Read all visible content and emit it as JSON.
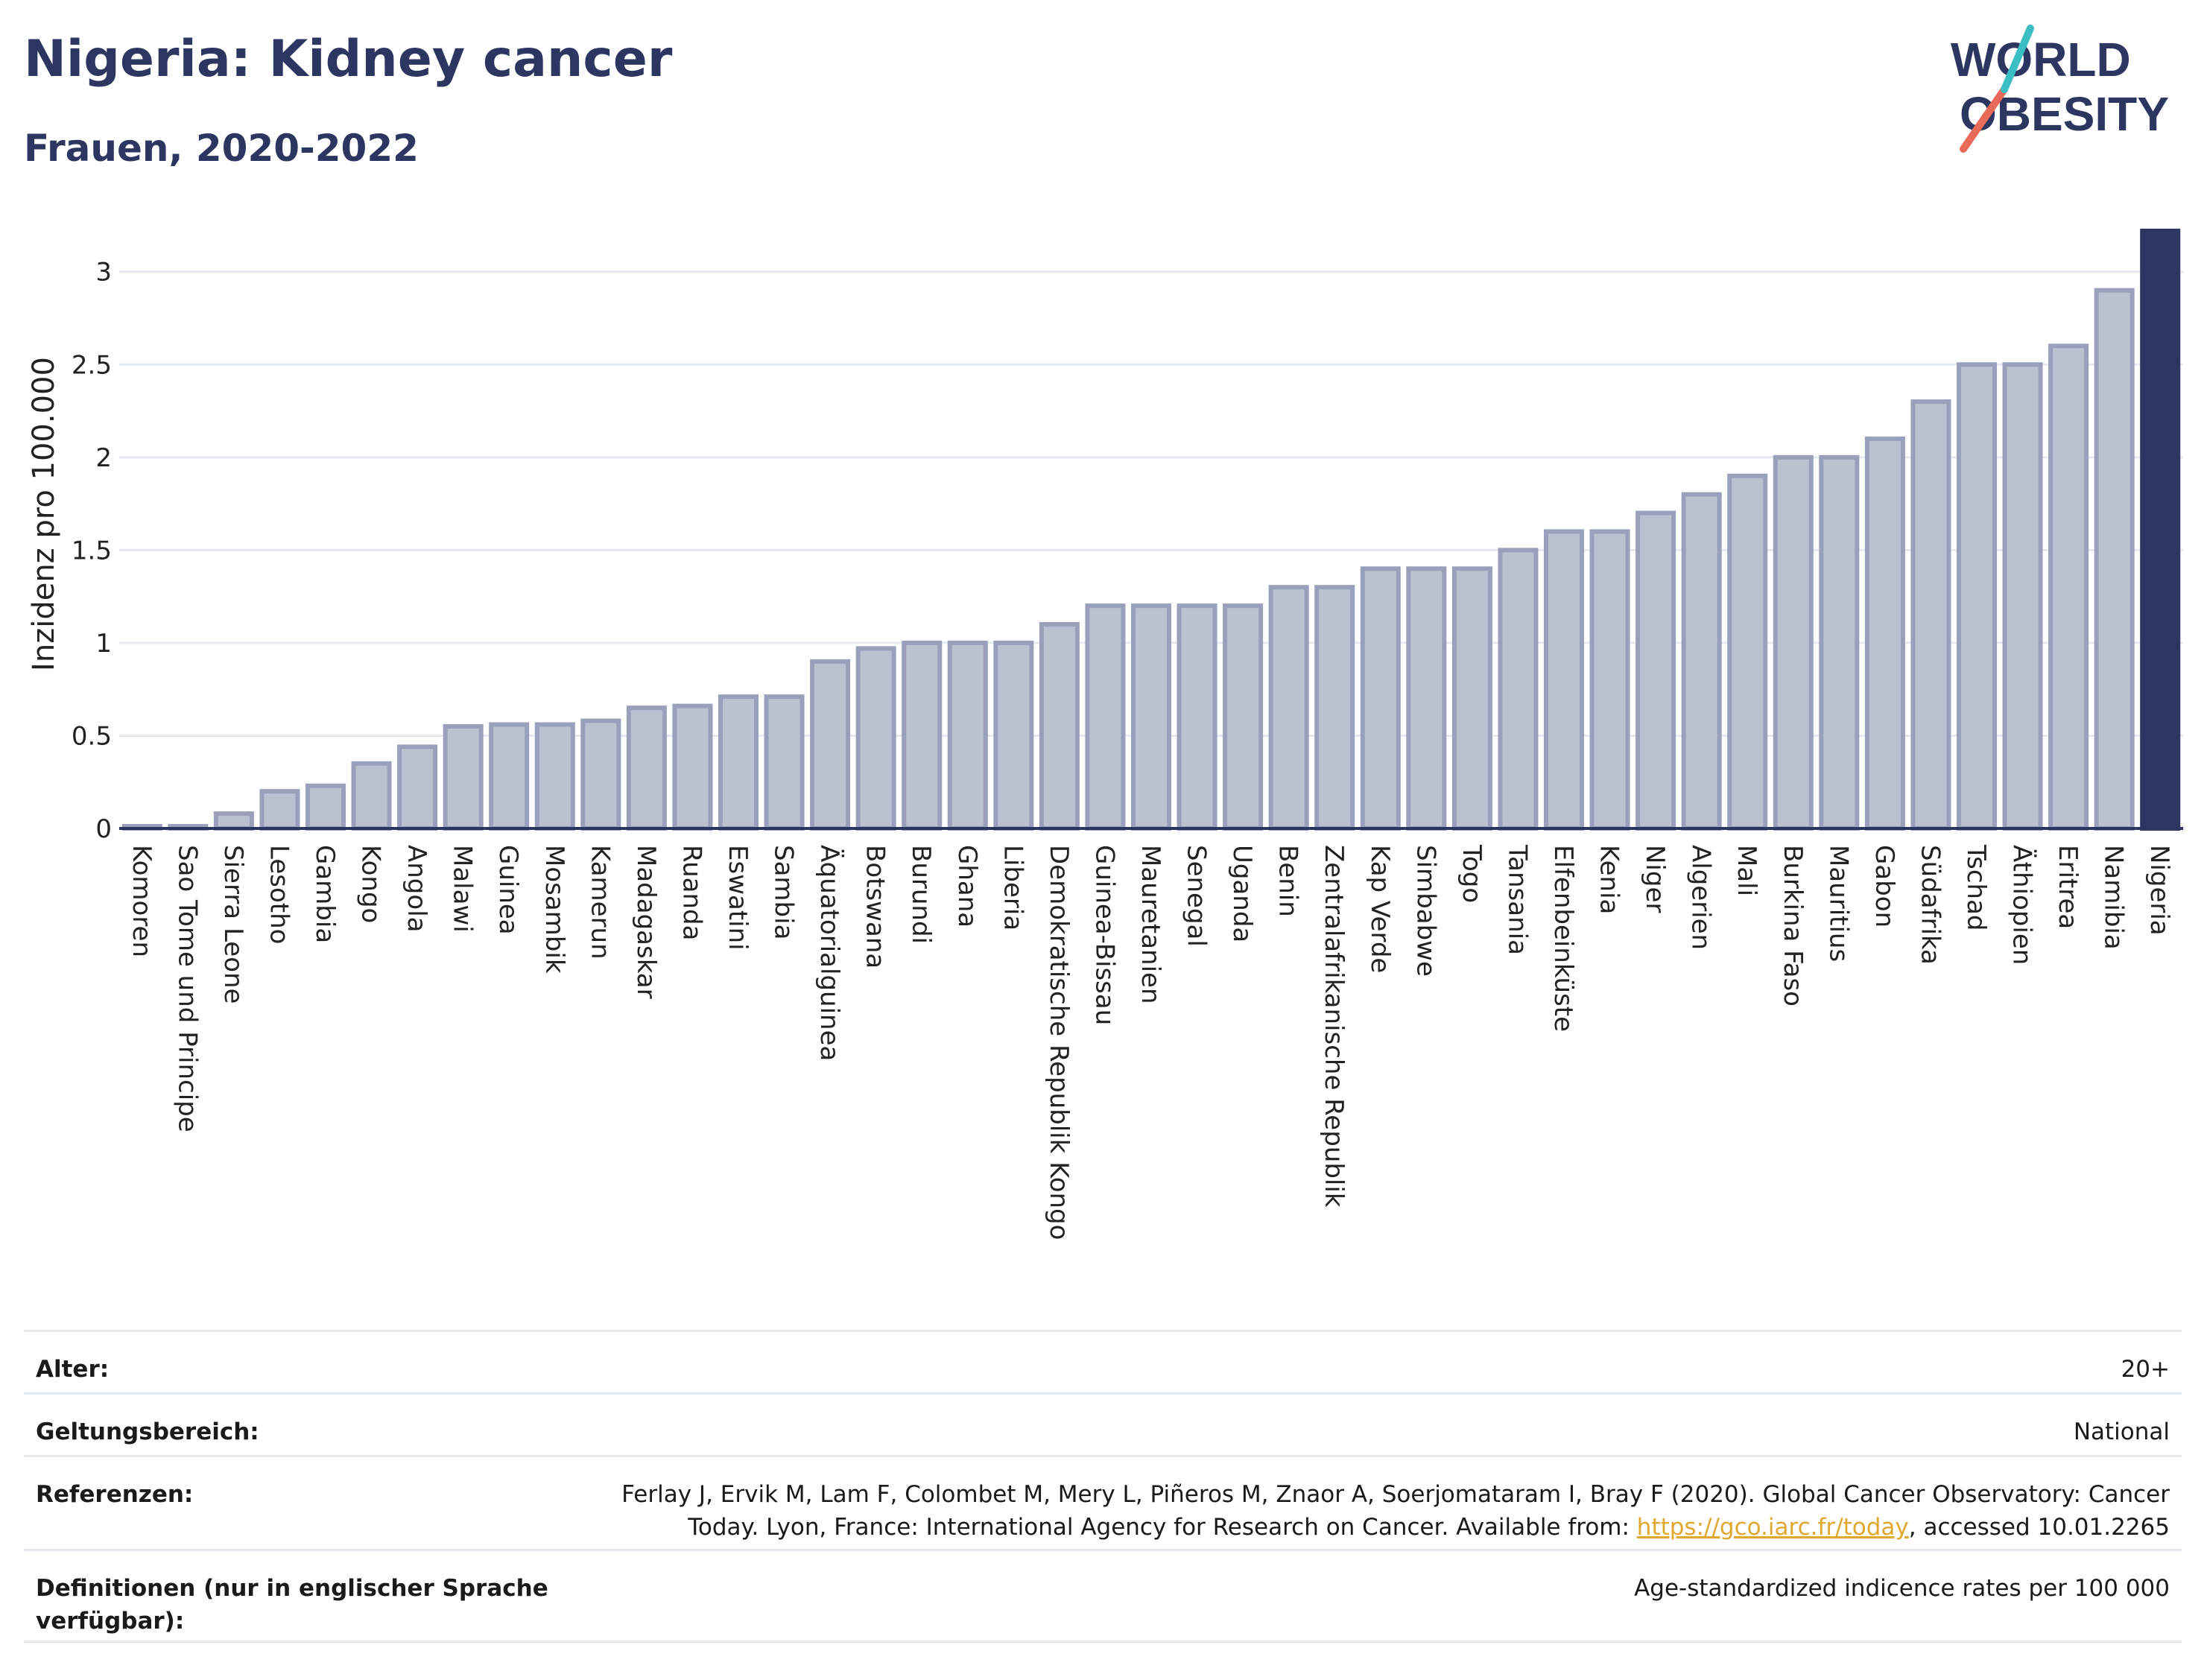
{
  "header": {
    "title": "Nigeria: Kidney cancer",
    "subtitle": "Frauen, 2020-2022"
  },
  "logo": {
    "line1": "WORLD",
    "line2": "OBESITY",
    "accent_teal": "#3bbfc5",
    "accent_red": "#e86b5a",
    "text_color": "#2d3561"
  },
  "colors": {
    "bar_fill": "#bcc1d1",
    "bar_stroke": "#9aa0bb",
    "highlight": "#2d3561",
    "grid": "#e6eaf0"
  },
  "chart_data": {
    "type": "bar",
    "ylabel": "Inzidenz pro 100.000",
    "ylim": [
      0,
      3.3
    ],
    "yticks": [
      "0",
      "0.5",
      "1",
      "1.5",
      "2",
      "2.5",
      "3"
    ],
    "ytick_values": [
      0,
      0.5,
      1,
      1.5,
      2,
      2.5,
      3
    ],
    "highlight": "Nigeria",
    "grid": true,
    "categories": [
      "Komoren",
      "Sao Tome und Principe",
      "Sierra Leone",
      "Lesotho",
      "Gambia",
      "Kongo",
      "Angola",
      "Malawi",
      "Guinea",
      "Mosambik",
      "Kamerun",
      "Madagaskar",
      "Ruanda",
      "Eswatini",
      "Sambia",
      "Äquatorialguinea",
      "Botswana",
      "Burundi",
      "Ghana",
      "Liberia",
      "Demokratische Republik Kongo",
      "Guinea-Bissau",
      "Mauretanien",
      "Senegal",
      "Uganda",
      "Benin",
      "Zentralafrikanische Republik",
      "Kap Verde",
      "Simbabwe",
      "Togo",
      "Tansania",
      "Elfenbeinküste",
      "Kenia",
      "Niger",
      "Algerien",
      "Mali",
      "Burkina Faso",
      "Mauritius",
      "Gabon",
      "Südafrika",
      "Tschad",
      "Äthiopien",
      "Eritrea",
      "Namibia",
      "Nigeria"
    ],
    "values": [
      0.01,
      0.01,
      0.08,
      0.2,
      0.23,
      0.35,
      0.44,
      0.55,
      0.56,
      0.56,
      0.58,
      0.65,
      0.66,
      0.71,
      0.71,
      0.9,
      0.97,
      1.0,
      1.0,
      1.0,
      1.1,
      1.2,
      1.2,
      1.2,
      1.2,
      1.3,
      1.3,
      1.4,
      1.4,
      1.4,
      1.5,
      1.6,
      1.6,
      1.7,
      1.8,
      1.9,
      2.0,
      2.0,
      2.1,
      2.3,
      2.5,
      2.5,
      2.6,
      2.9,
      3.22
    ]
  },
  "meta": {
    "age_label": "Alter:",
    "age_value": "20+",
    "scope_label": "Geltungsbereich:",
    "scope_value": "National",
    "ref_label": "Referenzen:",
    "ref_text_1": "Ferlay J, Ervik M, Lam F, Colombet M, Mery L, Piñeros M, Znaor A, Soerjomataram I, Bray F (2020). Global Cancer Observatory: Cancer Today. Lyon, France: International Agency for Research on Cancer. Available from: ",
    "ref_link": "https://gco.iarc.fr/today",
    "ref_text_2": ", accessed 10.01.2265",
    "def_label": "Definitionen (nur in englischer Sprache verfügbar):",
    "def_value": "Age-standardized indicence rates per 100 000"
  }
}
